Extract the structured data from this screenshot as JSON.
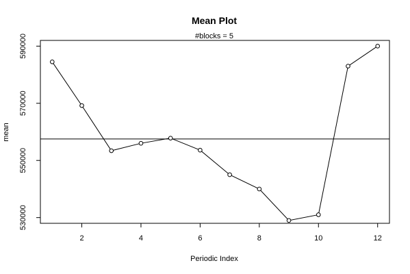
{
  "chart_data": {
    "type": "line",
    "title": "Mean Plot",
    "subtitle": "#blocks =  5",
    "xlabel": "Periodic Index",
    "ylabel": "mean",
    "xlim": [
      0.6,
      12.4
    ],
    "ylim": [
      528000,
      592000
    ],
    "x_ticks": [
      2,
      4,
      6,
      8,
      10,
      12
    ],
    "y_ticks": [
      530000,
      550000,
      570000,
      590000
    ],
    "y_tick_labels": [
      "530000",
      "550000",
      "570000",
      "590000"
    ],
    "x": [
      1,
      2,
      3,
      4,
      5,
      6,
      7,
      8,
      9,
      10,
      11,
      12
    ],
    "series": [
      {
        "values": [
          584500,
          569200,
          553400,
          556000,
          557800,
          553600,
          545000,
          540000,
          529000,
          531000,
          583000,
          590000
        ]
      }
    ],
    "reference_line": {
      "value": 557500
    },
    "colors": {
      "line": "#000000",
      "marker_fill": "#ffffff",
      "axis": "#000000"
    }
  }
}
